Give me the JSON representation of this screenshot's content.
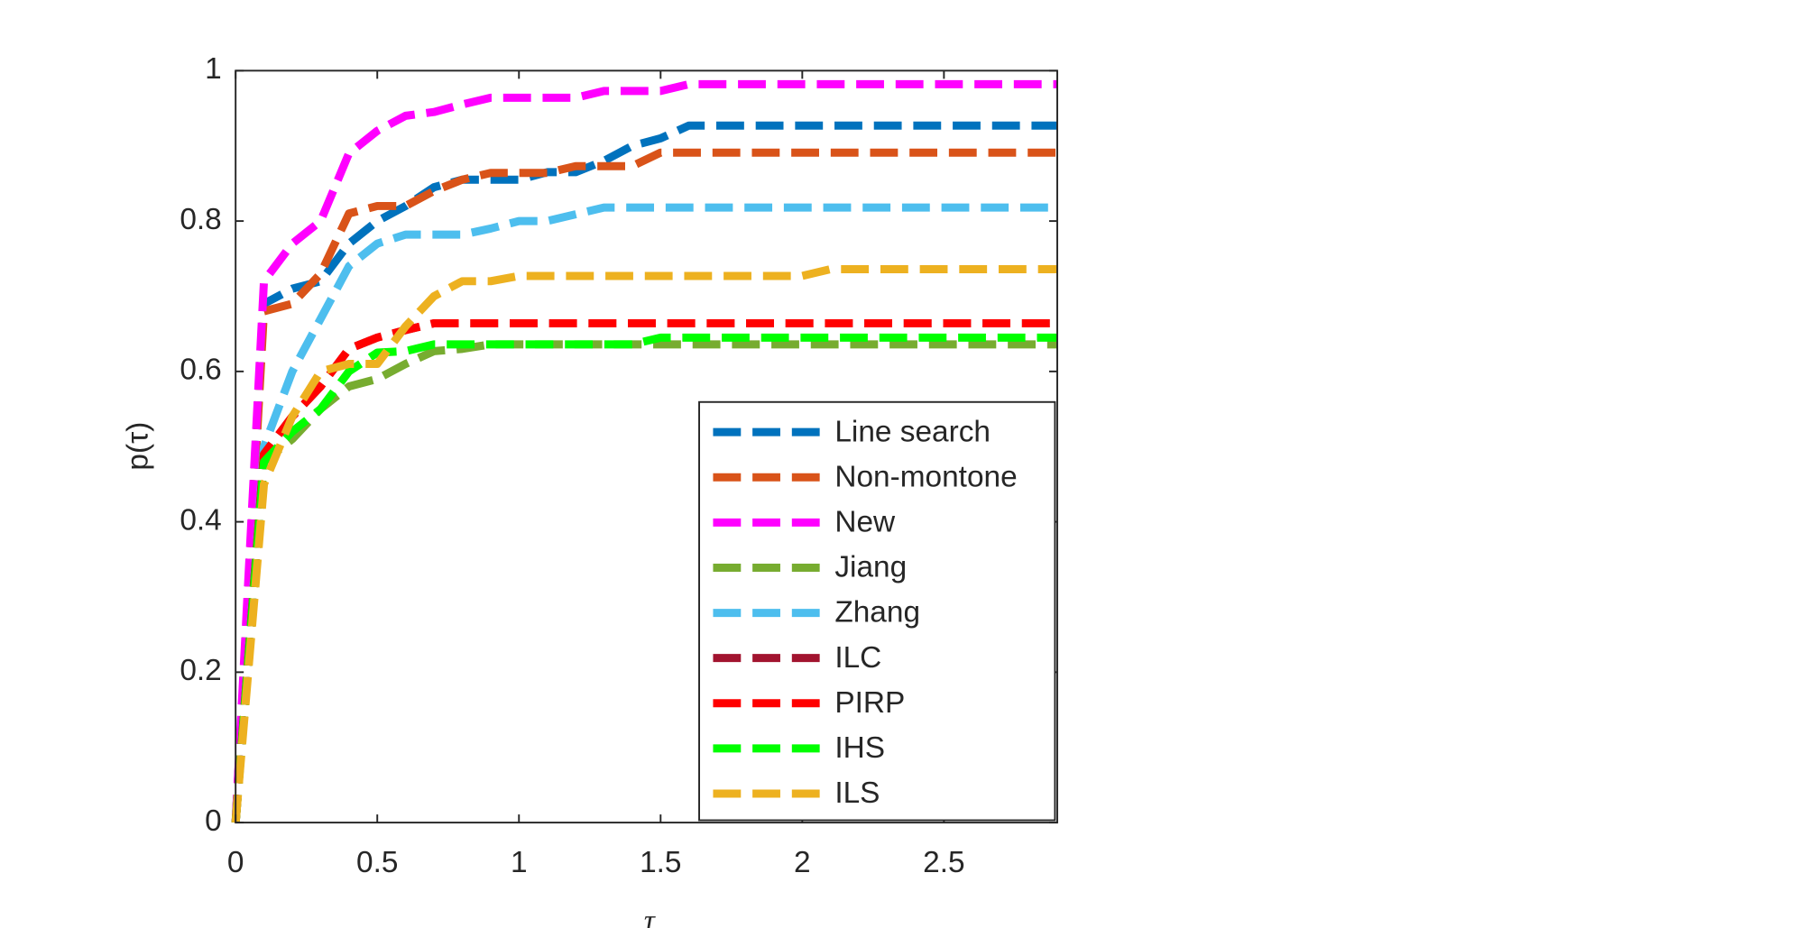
{
  "chart_data": {
    "type": "line",
    "x_label": "τ",
    "y_label": "p(τ)",
    "xlim": [
      0,
      2.9
    ],
    "ylim": [
      0,
      1
    ],
    "xticks": [
      0,
      0.5,
      1,
      1.5,
      2,
      2.5
    ],
    "yticks": [
      0,
      0.2,
      0.4,
      0.6,
      0.8,
      1
    ],
    "legend": "lower right",
    "series": [
      {
        "name": "Line search",
        "color": "#0072BD",
        "x": [
          0,
          0.1,
          0.2,
          0.3,
          0.4,
          0.5,
          0.6,
          0.7,
          0.8,
          0.9,
          1.0,
          1.1,
          1.2,
          1.3,
          1.4,
          1.5,
          1.6,
          2.9
        ],
        "values": [
          0,
          0.69,
          0.71,
          0.72,
          0.77,
          0.8,
          0.82,
          0.845,
          0.855,
          0.855,
          0.855,
          0.865,
          0.865,
          0.88,
          0.9,
          0.91,
          0.927,
          0.927
        ]
      },
      {
        "name": "Non-montone",
        "color": "#D95319",
        "x": [
          0,
          0.1,
          0.2,
          0.3,
          0.4,
          0.5,
          0.6,
          0.7,
          0.8,
          0.9,
          1.0,
          1.1,
          1.2,
          1.4,
          1.5,
          2.9
        ],
        "values": [
          0,
          0.68,
          0.69,
          0.73,
          0.81,
          0.82,
          0.82,
          0.84,
          0.855,
          0.864,
          0.864,
          0.864,
          0.873,
          0.873,
          0.891,
          0.891
        ]
      },
      {
        "name": "New",
        "color": "#FF00FF",
        "x": [
          0,
          0.1,
          0.2,
          0.3,
          0.4,
          0.5,
          0.6,
          0.7,
          0.8,
          0.9,
          1.2,
          1.3,
          1.5,
          1.6,
          2.9
        ],
        "values": [
          0,
          0.72,
          0.77,
          0.8,
          0.89,
          0.92,
          0.94,
          0.945,
          0.955,
          0.964,
          0.964,
          0.973,
          0.973,
          0.982,
          0.982
        ]
      },
      {
        "name": "Jiang",
        "color": "#77AC30",
        "x": [
          0,
          0.1,
          0.2,
          0.3,
          0.4,
          0.5,
          0.6,
          0.7,
          0.8,
          0.9,
          2.9
        ],
        "values": [
          0,
          0.48,
          0.51,
          0.55,
          0.58,
          0.59,
          0.61,
          0.627,
          0.63,
          0.636,
          0.636
        ]
      },
      {
        "name": "Zhang",
        "color": "#4DBEEE",
        "x": [
          0,
          0.1,
          0.2,
          0.3,
          0.4,
          0.5,
          0.6,
          0.8,
          0.9,
          1.0,
          1.1,
          1.3,
          2.9
        ],
        "values": [
          0,
          0.5,
          0.6,
          0.67,
          0.74,
          0.77,
          0.782,
          0.782,
          0.79,
          0.8,
          0.8,
          0.818,
          0.818
        ]
      },
      {
        "name": "ILC",
        "color": "#A2142F",
        "x": [
          0,
          0.1,
          0.2,
          0.3,
          0.4,
          0.5,
          0.6,
          0.7,
          2.9
        ],
        "values": [
          0,
          0.49,
          0.54,
          0.58,
          0.63,
          0.645,
          0.655,
          0.664,
          0.664
        ]
      },
      {
        "name": "PIRP",
        "color": "#FF0000",
        "x": [
          0,
          0.1,
          0.2,
          0.3,
          0.4,
          0.5,
          0.6,
          0.7,
          2.9
        ],
        "values": [
          0,
          0.49,
          0.54,
          0.58,
          0.63,
          0.645,
          0.655,
          0.664,
          0.664
        ]
      },
      {
        "name": "IHS",
        "color": "#00FF00",
        "x": [
          0,
          0.1,
          0.2,
          0.3,
          0.4,
          0.5,
          0.6,
          0.7,
          1.4,
          1.5,
          2.9
        ],
        "values": [
          0,
          0.48,
          0.52,
          0.55,
          0.6,
          0.625,
          0.627,
          0.636,
          0.636,
          0.645,
          0.645
        ]
      },
      {
        "name": "ILS",
        "color": "#EDB120",
        "x": [
          0,
          0.1,
          0.2,
          0.3,
          0.4,
          0.5,
          0.6,
          0.7,
          0.8,
          0.9,
          1.0,
          2.0,
          2.1,
          2.9
        ],
        "values": [
          0,
          0.45,
          0.54,
          0.6,
          0.61,
          0.61,
          0.66,
          0.7,
          0.72,
          0.72,
          0.727,
          0.727,
          0.736,
          0.736
        ]
      }
    ]
  }
}
